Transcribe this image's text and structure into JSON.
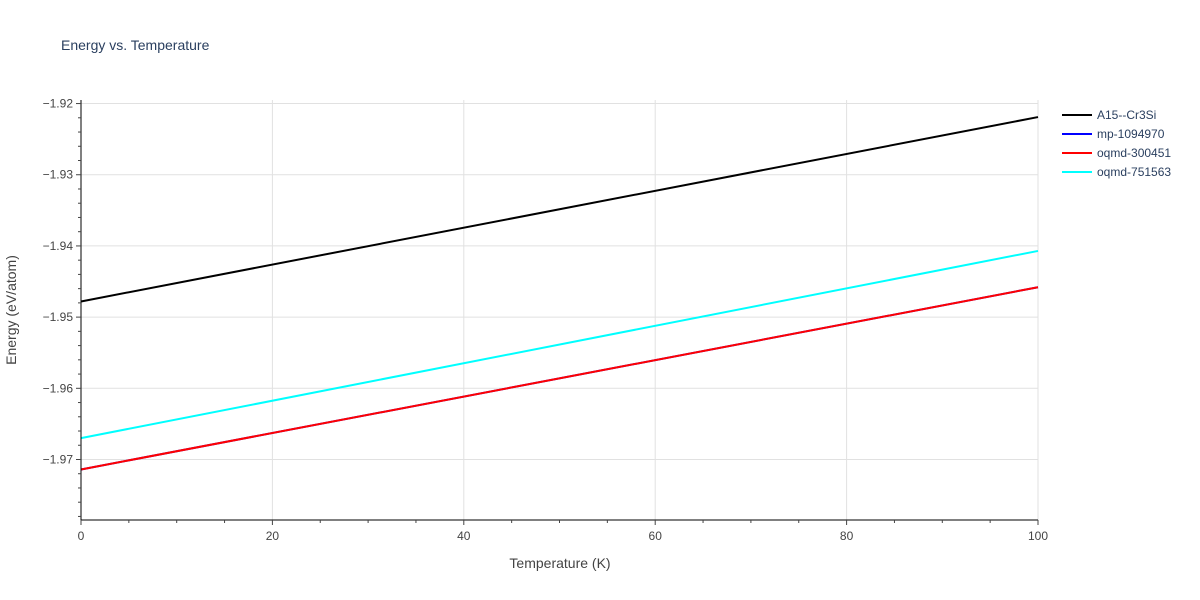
{
  "chart_data": {
    "type": "line",
    "title": "Energy vs. Temperature",
    "xlabel": "Temperature (K)",
    "ylabel": "Energy (eV/atom)",
    "xlim": [
      0,
      100
    ],
    "ylim": [
      -1.9785,
      -1.9195
    ],
    "x_ticks": [
      0,
      20,
      40,
      60,
      80,
      100
    ],
    "x_tick_labels": [
      "0",
      "20",
      "40",
      "60",
      "80",
      "100"
    ],
    "y_ticks": [
      -1.97,
      -1.96,
      -1.95,
      -1.94,
      -1.93,
      -1.92
    ],
    "y_tick_labels": [
      "−1.97",
      "−1.96",
      "−1.95",
      "−1.94",
      "−1.93",
      "−1.92"
    ],
    "grid": true,
    "legend_position": "top-right",
    "series": [
      {
        "name": "A15--Cr3Si",
        "color": "#000000",
        "x": [
          0,
          100
        ],
        "y": [
          -1.9478,
          -1.9219
        ]
      },
      {
        "name": "mp-1094970",
        "color": "#0000ff",
        "x": [
          0,
          100
        ],
        "y": [
          -1.9714,
          -1.9458
        ]
      },
      {
        "name": "oqmd-300451",
        "color": "#ff0000",
        "x": [
          0,
          100
        ],
        "y": [
          -1.9714,
          -1.9458
        ]
      },
      {
        "name": "oqmd-751563",
        "color": "#00ffff",
        "x": [
          0,
          100
        ],
        "y": [
          -1.967,
          -1.9407
        ]
      }
    ]
  }
}
